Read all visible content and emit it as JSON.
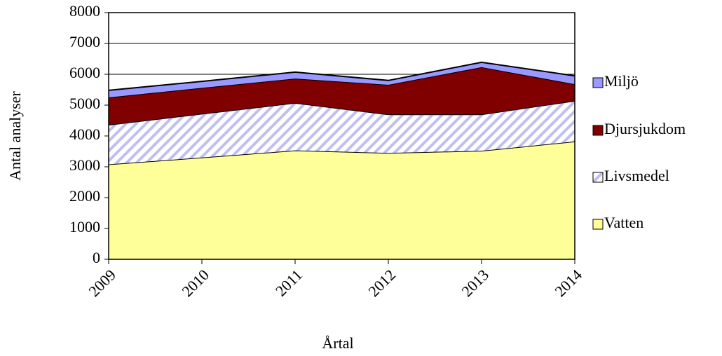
{
  "chart_data": {
    "type": "stacked-area",
    "x_label": "Årtal",
    "y_label": "Antal analyser",
    "categories": [
      "2009",
      "2010",
      "2011",
      "2012",
      "2013",
      "2014"
    ],
    "series": [
      {
        "name": "Vatten",
        "color": "#ffff99",
        "values": [
          3080,
          3300,
          3530,
          3450,
          3520,
          3820
        ]
      },
      {
        "name": "Livsmedel",
        "color": "#9999ff",
        "hatch": true,
        "values": [
          1280,
          1420,
          1540,
          1250,
          1180,
          1320
        ]
      },
      {
        "name": "Djursjukdom",
        "color": "#800000",
        "values": [
          890,
          840,
          790,
          960,
          1530,
          540
        ]
      },
      {
        "name": "Miljö",
        "color": "#9999ff",
        "values": [
          230,
          210,
          210,
          140,
          160,
          270
        ]
      }
    ],
    "ylim": [
      0,
      8000
    ],
    "yticks": [
      0,
      1000,
      2000,
      3000,
      4000,
      5000,
      6000,
      7000,
      8000
    ],
    "grid": true,
    "legend": "right"
  }
}
